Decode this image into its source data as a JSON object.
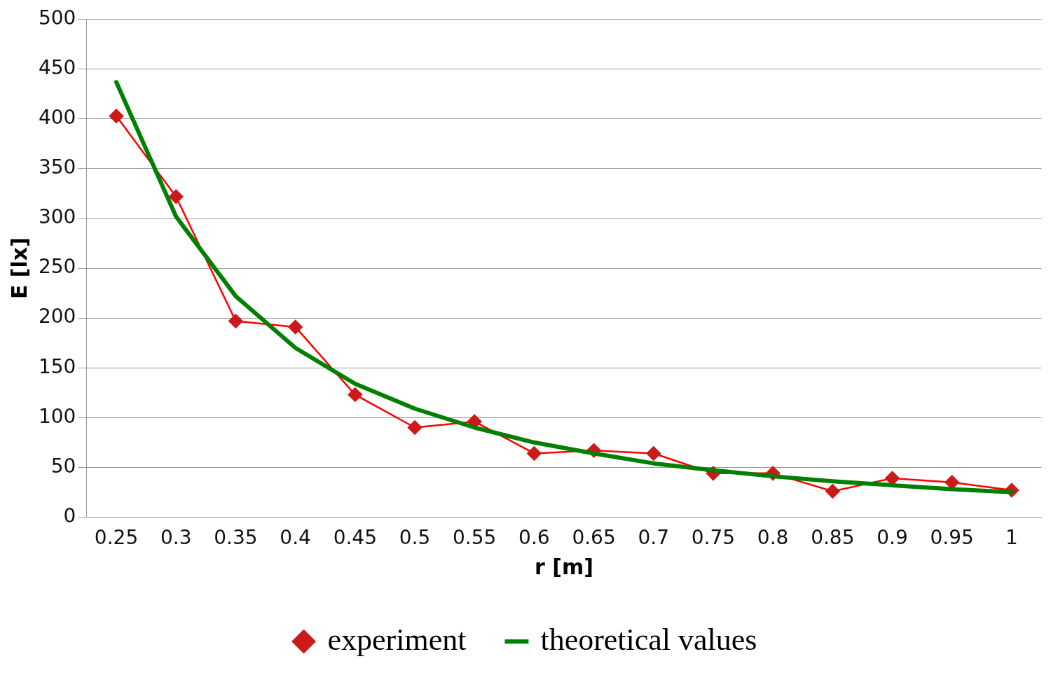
{
  "chart_data": {
    "type": "line",
    "xlabel": "r [m]",
    "ylabel": "E [lx]",
    "categories": [
      "0.25",
      "0.3",
      "0.35",
      "0.4",
      "0.45",
      "0.5",
      "0.55",
      "0.6",
      "0.65",
      "0.7",
      "0.75",
      "0.8",
      "0.85",
      "0.9",
      "0.95",
      "1"
    ],
    "series": [
      {
        "name": "experiment",
        "color": "#ff0000",
        "marker": "diamond",
        "values": [
          403,
          322,
          197,
          191,
          123,
          90,
          96,
          64,
          67,
          64,
          44,
          44,
          26,
          39,
          35,
          27
        ]
      },
      {
        "name": "theoretical values",
        "color": "#008000",
        "marker": "none",
        "values": [
          437,
          302,
          222,
          170,
          134,
          109,
          90,
          75,
          64,
          54,
          47,
          41,
          36,
          32,
          28,
          25
        ]
      }
    ],
    "ylim": [
      0,
      500
    ],
    "yticks": [
      0,
      50,
      100,
      150,
      200,
      250,
      300,
      350,
      400,
      450,
      500
    ],
    "grid": "y",
    "legend": "bottom"
  }
}
